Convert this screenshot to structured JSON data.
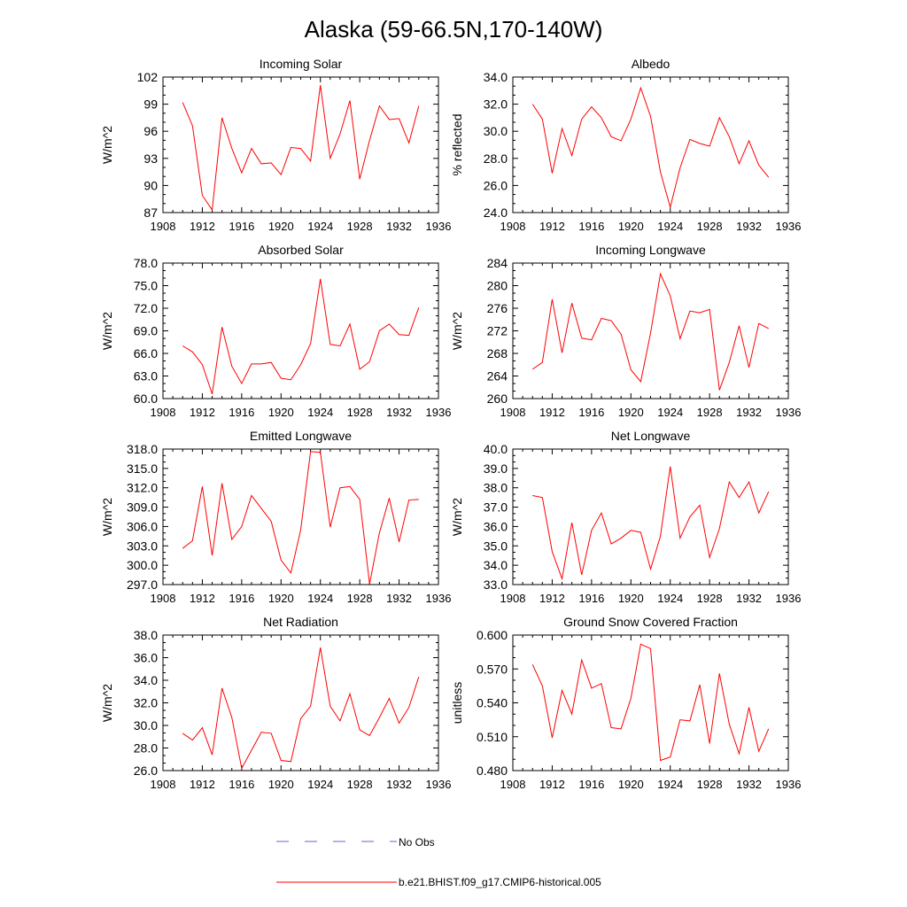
{
  "figure_title": "Alaska (59-66.5N,170-140W)",
  "colors": {
    "model": "#ff0000",
    "obs": "#6666cc",
    "axis": "#000000"
  },
  "legend": {
    "obs_label": "No Obs",
    "model_label": "b.e21.BHIST.f09_g17.CMIP6-historical.005"
  },
  "chart_data": [
    {
      "type": "line",
      "title": "Incoming Solar",
      "xlabel": "",
      "ylabel": "W/m^2",
      "xlim": [
        1908,
        1936
      ],
      "xticks": [
        1908,
        1912,
        1916,
        1920,
        1924,
        1928,
        1932,
        1936
      ],
      "ylim": [
        87,
        102
      ],
      "yticks": [
        87,
        90,
        93,
        96,
        99,
        102
      ],
      "ytick_labels": [
        "87",
        "90",
        "93",
        "96",
        "99",
        "102"
      ],
      "x": [
        1910,
        1911,
        1912,
        1913,
        1914,
        1915,
        1916,
        1917,
        1918,
        1919,
        1920,
        1921,
        1922,
        1923,
        1924,
        1925,
        1926,
        1927,
        1928,
        1929,
        1930,
        1931,
        1932,
        1933,
        1934
      ],
      "series": [
        {
          "name": "b.e21.BHIST.f09_g17.CMIP6-historical.005",
          "values": [
            99.2,
            96.6,
            88.9,
            87.3,
            97.5,
            94.1,
            91.4,
            94.1,
            92.4,
            92.5,
            91.2,
            94.2,
            94.1,
            92.7,
            101.1,
            93.0,
            95.7,
            99.4,
            90.7,
            95.0,
            98.8,
            97.3,
            97.4,
            94.7,
            98.8
          ]
        }
      ]
    },
    {
      "type": "line",
      "title": "Albedo",
      "xlabel": "",
      "ylabel": "% reflected",
      "xlim": [
        1908,
        1936
      ],
      "xticks": [
        1908,
        1912,
        1916,
        1920,
        1924,
        1928,
        1932,
        1936
      ],
      "ylim": [
        24,
        34
      ],
      "yticks": [
        24,
        26,
        28,
        30,
        32,
        34
      ],
      "ytick_labels": [
        "24.0",
        "26.0",
        "28.0",
        "30.0",
        "32.0",
        "34.0"
      ],
      "x": [
        1910,
        1911,
        1912,
        1913,
        1914,
        1915,
        1916,
        1917,
        1918,
        1919,
        1920,
        1921,
        1922,
        1923,
        1924,
        1925,
        1926,
        1927,
        1928,
        1929,
        1930,
        1931,
        1932,
        1933,
        1934
      ],
      "series": [
        {
          "name": "b.e21.BHIST.f09_g17.CMIP6-historical.005",
          "values": [
            32.0,
            30.9,
            26.9,
            30.2,
            28.2,
            30.9,
            31.8,
            31.0,
            29.6,
            29.3,
            30.9,
            33.2,
            31.1,
            27.0,
            24.4,
            27.3,
            29.4,
            29.1,
            28.9,
            31.0,
            29.6,
            27.6,
            29.3,
            27.5,
            26.6
          ]
        }
      ]
    },
    {
      "type": "line",
      "title": "Absorbed Solar",
      "xlabel": "",
      "ylabel": "W/m^2",
      "xlim": [
        1908,
        1936
      ],
      "xticks": [
        1908,
        1912,
        1916,
        1920,
        1924,
        1928,
        1932,
        1936
      ],
      "ylim": [
        60,
        78
      ],
      "yticks": [
        60,
        63,
        66,
        69,
        72,
        75,
        78
      ],
      "ytick_labels": [
        "60.0",
        "63.0",
        "66.0",
        "69.0",
        "72.0",
        "75.0",
        "78.0"
      ],
      "x": [
        1910,
        1911,
        1912,
        1913,
        1914,
        1915,
        1916,
        1917,
        1918,
        1919,
        1920,
        1921,
        1922,
        1923,
        1924,
        1925,
        1926,
        1927,
        1928,
        1929,
        1930,
        1931,
        1932,
        1933,
        1934
      ],
      "series": [
        {
          "name": "b.e21.BHIST.f09_g17.CMIP6-historical.005",
          "values": [
            67.0,
            66.2,
            64.5,
            60.6,
            69.5,
            64.3,
            62.0,
            64.6,
            64.6,
            64.8,
            62.7,
            62.5,
            64.5,
            67.3,
            75.9,
            67.2,
            67.0,
            69.9,
            63.9,
            64.9,
            69.0,
            69.9,
            68.5,
            68.4,
            72.1
          ]
        }
      ]
    },
    {
      "type": "line",
      "title": "Incoming Longwave",
      "xlabel": "",
      "ylabel": "W/m^2",
      "xlim": [
        1908,
        1936
      ],
      "xticks": [
        1908,
        1912,
        1916,
        1920,
        1924,
        1928,
        1932,
        1936
      ],
      "ylim": [
        260,
        284
      ],
      "yticks": [
        260,
        264,
        268,
        272,
        276,
        280,
        284
      ],
      "ytick_labels": [
        "260",
        "264",
        "268",
        "272",
        "276",
        "280",
        "284"
      ],
      "x": [
        1910,
        1911,
        1912,
        1913,
        1914,
        1915,
        1916,
        1917,
        1918,
        1919,
        1920,
        1921,
        1922,
        1923,
        1924,
        1925,
        1926,
        1927,
        1928,
        1929,
        1930,
        1931,
        1932,
        1933,
        1934
      ],
      "series": [
        {
          "name": "b.e21.BHIST.f09_g17.CMIP6-historical.005",
          "values": [
            265.2,
            266.4,
            277.6,
            268.1,
            276.9,
            270.7,
            270.4,
            274.2,
            273.8,
            271.4,
            265.1,
            263.0,
            271.6,
            282.1,
            278.2,
            270.6,
            275.5,
            275.2,
            275.8,
            261.5,
            266.4,
            272.9,
            265.5,
            273.3,
            272.4
          ]
        }
      ]
    },
    {
      "type": "line",
      "title": "Emitted Longwave",
      "xlabel": "",
      "ylabel": "W/m^2",
      "xlim": [
        1908,
        1936
      ],
      "xticks": [
        1908,
        1912,
        1916,
        1920,
        1924,
        1928,
        1932,
        1936
      ],
      "ylim": [
        297,
        318
      ],
      "yticks": [
        297,
        300,
        303,
        306,
        309,
        312,
        315,
        318
      ],
      "ytick_labels": [
        "297.0",
        "300.0",
        "303.0",
        "306.0",
        "309.0",
        "312.0",
        "315.0",
        "318.0"
      ],
      "x": [
        1910,
        1911,
        1912,
        1913,
        1914,
        1915,
        1916,
        1917,
        1918,
        1919,
        1920,
        1921,
        1922,
        1923,
        1924,
        1925,
        1926,
        1927,
        1928,
        1929,
        1930,
        1931,
        1932,
        1933,
        1934
      ],
      "series": [
        {
          "name": "b.e21.BHIST.f09_g17.CMIP6-historical.005",
          "values": [
            302.6,
            303.8,
            312.2,
            301.5,
            312.7,
            304.0,
            306.0,
            310.8,
            308.8,
            306.8,
            300.8,
            298.8,
            305.5,
            317.6,
            317.5,
            305.9,
            312.0,
            312.2,
            310.2,
            297.1,
            305.0,
            310.4,
            303.6,
            310.1,
            310.2
          ]
        }
      ]
    },
    {
      "type": "line",
      "title": "Net Longwave",
      "xlabel": "",
      "ylabel": "W/m^2",
      "xlim": [
        1908,
        1936
      ],
      "xticks": [
        1908,
        1912,
        1916,
        1920,
        1924,
        1928,
        1932,
        1936
      ],
      "ylim": [
        33,
        40
      ],
      "yticks": [
        33,
        34,
        35,
        36,
        37,
        38,
        39,
        40
      ],
      "ytick_labels": [
        "33.0",
        "34.0",
        "35.0",
        "36.0",
        "37.0",
        "38.0",
        "39.0",
        "40.0"
      ],
      "x": [
        1910,
        1911,
        1912,
        1913,
        1914,
        1915,
        1916,
        1917,
        1918,
        1919,
        1920,
        1921,
        1922,
        1923,
        1924,
        1925,
        1926,
        1927,
        1928,
        1929,
        1930,
        1931,
        1932,
        1933,
        1934
      ],
      "series": [
        {
          "name": "b.e21.BHIST.f09_g17.CMIP6-historical.005",
          "values": [
            37.6,
            37.5,
            34.7,
            33.3,
            36.2,
            33.5,
            35.8,
            36.7,
            35.1,
            35.4,
            35.8,
            35.7,
            33.8,
            35.5,
            39.1,
            35.4,
            36.5,
            37.1,
            34.4,
            35.9,
            38.3,
            37.5,
            38.3,
            36.7,
            37.8
          ]
        }
      ]
    },
    {
      "type": "line",
      "title": "Net Radiation",
      "xlabel": "",
      "ylabel": "W/m^2",
      "xlim": [
        1908,
        1936
      ],
      "xticks": [
        1908,
        1912,
        1916,
        1920,
        1924,
        1928,
        1932,
        1936
      ],
      "ylim": [
        26,
        38
      ],
      "yticks": [
        26,
        28,
        30,
        32,
        34,
        36,
        38
      ],
      "ytick_labels": [
        "26.0",
        "28.0",
        "30.0",
        "32.0",
        "34.0",
        "36.0",
        "38.0"
      ],
      "x": [
        1910,
        1911,
        1912,
        1913,
        1914,
        1915,
        1916,
        1917,
        1918,
        1919,
        1920,
        1921,
        1922,
        1923,
        1924,
        1925,
        1926,
        1927,
        1928,
        1929,
        1930,
        1931,
        1932,
        1933,
        1934
      ],
      "series": [
        {
          "name": "b.e21.BHIST.f09_g17.CMIP6-historical.005",
          "values": [
            29.3,
            28.7,
            29.8,
            27.4,
            33.3,
            30.7,
            26.2,
            27.8,
            29.4,
            29.3,
            26.9,
            26.8,
            30.6,
            31.7,
            36.9,
            31.7,
            30.4,
            32.8,
            29.6,
            29.1,
            30.7,
            32.4,
            30.2,
            31.6,
            34.3
          ]
        }
      ]
    },
    {
      "type": "line",
      "title": "Ground Snow Covered Fraction",
      "xlabel": "",
      "ylabel": "unitless",
      "xlim": [
        1908,
        1936
      ],
      "xticks": [
        1908,
        1912,
        1916,
        1920,
        1924,
        1928,
        1932,
        1936
      ],
      "ylim": [
        0.48,
        0.6
      ],
      "yticks": [
        0.48,
        0.51,
        0.54,
        0.57,
        0.6
      ],
      "ytick_labels": [
        "0.480",
        "0.510",
        "0.540",
        "0.570",
        "0.600"
      ],
      "x": [
        1910,
        1911,
        1912,
        1913,
        1914,
        1915,
        1916,
        1917,
        1918,
        1919,
        1920,
        1921,
        1922,
        1923,
        1924,
        1925,
        1926,
        1927,
        1928,
        1929,
        1930,
        1931,
        1932,
        1933,
        1934
      ],
      "series": [
        {
          "name": "b.e21.BHIST.f09_g17.CMIP6-historical.005",
          "values": [
            0.574,
            0.555,
            0.509,
            0.551,
            0.53,
            0.578,
            0.553,
            0.557,
            0.518,
            0.517,
            0.544,
            0.592,
            0.588,
            0.489,
            0.492,
            0.525,
            0.524,
            0.556,
            0.504,
            0.566,
            0.521,
            0.495,
            0.536,
            0.497,
            0.517
          ]
        }
      ]
    }
  ]
}
